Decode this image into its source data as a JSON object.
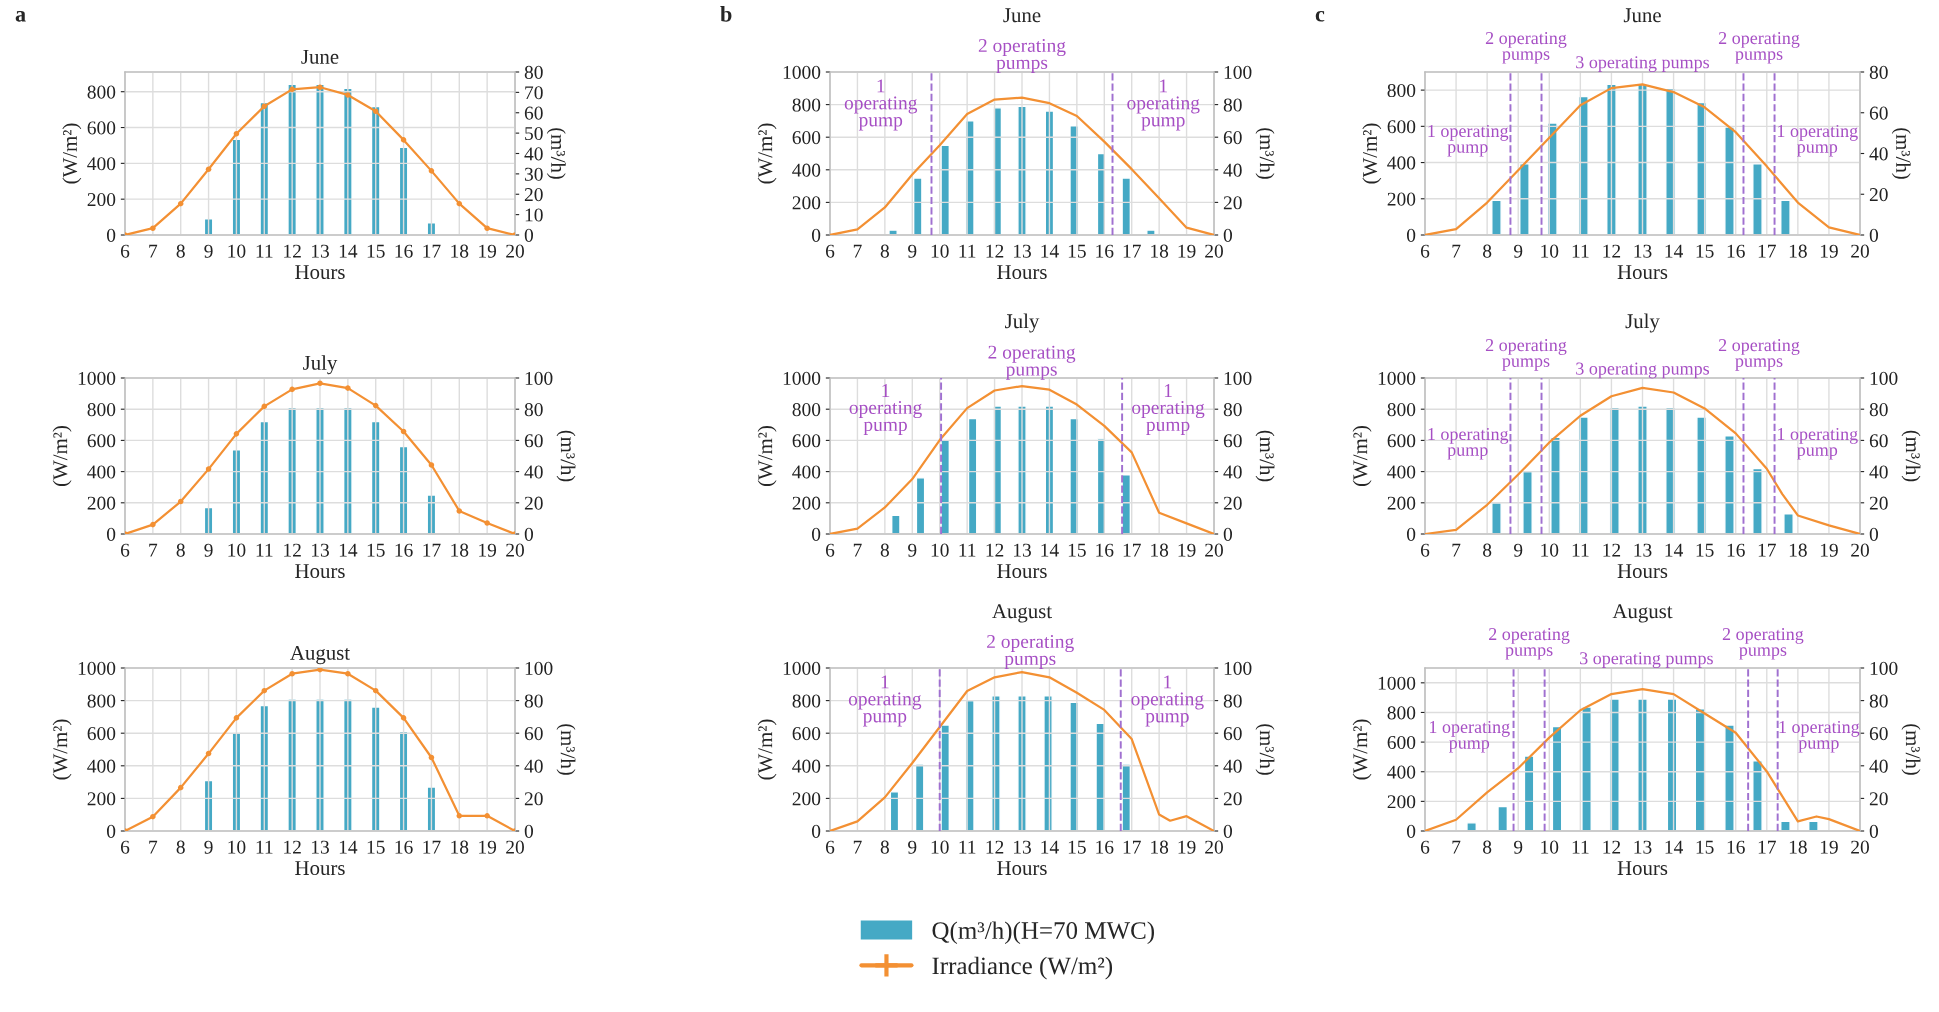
{
  "chart_data": [
    {
      "type": "bar",
      "title": "June",
      "xlabel": "Hours",
      "ylabel": "(W/m²)",
      "y2label": "(m³/h)",
      "xlim": [
        6,
        20
      ],
      "xticks": [
        6,
        7,
        8,
        9,
        10,
        11,
        12,
        13,
        14,
        15,
        16,
        17,
        18,
        19,
        20
      ],
      "ylim": [
        0,
        910
      ],
      "yticks": [
        0,
        200,
        400,
        600,
        800
      ],
      "y2lim": [
        0,
        80
      ],
      "y2ticks": [
        0,
        10,
        20,
        30,
        40,
        50,
        60,
        70,
        80
      ],
      "grid": true,
      "legend": "bottom",
      "annotations": [
        "a"
      ],
      "series": [
        {
          "name": "Q(m³/h)(H=70 MWC)",
          "axis": "y2",
          "color": "#45a9c5",
          "x": [
            9,
            10,
            11,
            12,
            13,
            14,
            15,
            16,
            17
          ],
          "values": [
            8,
            47,
            65,
            74,
            74,
            72,
            63,
            43,
            6
          ]
        },
        {
          "name": "Irradiance (W/m²)",
          "type": "line",
          "axis": "y",
          "color": "#f39033",
          "marker": "circle",
          "x": [
            6,
            7,
            8,
            9,
            10,
            11,
            12,
            13,
            14,
            15,
            16,
            17,
            18,
            19,
            20
          ],
          "values": [
            0,
            38,
            175,
            367,
            565,
            719,
            813,
            825,
            782,
            691,
            531,
            358,
            175,
            38,
            0
          ]
        }
      ]
    },
    {
      "type": "bar",
      "title": "July",
      "xlabel": "Hours",
      "ylabel": "(W/m²)",
      "y2label": "(m³/h)",
      "xlim": [
        6,
        20
      ],
      "xticks": [
        6,
        7,
        8,
        9,
        10,
        11,
        12,
        13,
        14,
        15,
        16,
        17,
        18,
        19,
        20
      ],
      "ylim": [
        0,
        1000
      ],
      "yticks": [
        0,
        200,
        400,
        600,
        800,
        1000
      ],
      "y2lim": [
        0,
        100
      ],
      "y2ticks": [
        0,
        20,
        40,
        60,
        80,
        100
      ],
      "grid": true,
      "series": [
        {
          "name": "Q(m³/h)(H=70 MWC)",
          "axis": "y2",
          "color": "#45a9c5",
          "x": [
            9,
            10,
            11,
            12,
            13,
            14,
            15,
            16,
            17
          ],
          "values": [
            17,
            54,
            72,
            81,
            81,
            81,
            72,
            56,
            25
          ]
        },
        {
          "name": "Irradiance (W/m²)",
          "type": "line",
          "axis": "y",
          "color": "#f39033",
          "marker": "circle",
          "x": [
            6,
            7,
            8,
            9,
            10,
            11,
            12,
            13,
            14,
            15,
            16,
            17,
            18,
            19,
            20
          ],
          "values": [
            0,
            60,
            208,
            416,
            642,
            818,
            927,
            966,
            935,
            823,
            657,
            442,
            148,
            70,
            0
          ]
        }
      ]
    },
    {
      "type": "bar",
      "title": "August",
      "xlabel": "Hours",
      "ylabel": "(W/m²)",
      "y2label": "(m³/h)",
      "xlim": [
        6,
        20
      ],
      "xticks": [
        6,
        7,
        8,
        9,
        10,
        11,
        12,
        13,
        14,
        15,
        16,
        17,
        18,
        19,
        20
      ],
      "ylim": [
        0,
        1000
      ],
      "yticks": [
        0,
        200,
        400,
        600,
        800,
        1000
      ],
      "y2lim": [
        0,
        100
      ],
      "y2ticks": [
        0,
        20,
        40,
        60,
        80,
        100
      ],
      "grid": true,
      "series": [
        {
          "name": "Q(m³/h)(H=70 MWC)",
          "axis": "y2",
          "color": "#45a9c5",
          "x": [
            9,
            10,
            11,
            12,
            13,
            14,
            15,
            16,
            17
          ],
          "values": [
            31,
            60,
            77,
            81,
            81,
            81,
            76,
            61,
            27
          ]
        },
        {
          "name": "Irradiance (W/m²)",
          "type": "line",
          "axis": "y",
          "color": "#f39033",
          "marker": "circle",
          "x": [
            6,
            7,
            8,
            9,
            10,
            11,
            12,
            13,
            14,
            15,
            16,
            17,
            18,
            19,
            20
          ],
          "values": [
            0,
            88,
            266,
            475,
            694,
            861,
            965,
            990,
            965,
            861,
            694,
            451,
            93,
            93,
            0
          ]
        }
      ]
    },
    {
      "type": "bar",
      "title": "June",
      "xlabel": "Hours",
      "ylabel": "(W/m²)",
      "y2label": "(m³/h)",
      "xlim": [
        6,
        20
      ],
      "xticks": [
        6,
        7,
        8,
        9,
        10,
        11,
        12,
        13,
        14,
        15,
        16,
        17,
        18,
        19,
        20
      ],
      "ylim": [
        0,
        1000
      ],
      "yticks": [
        0,
        200,
        400,
        600,
        800,
        1000
      ],
      "y2lim": [
        0,
        100
      ],
      "y2ticks": [
        0,
        20,
        40,
        60,
        80,
        100
      ],
      "grid": true,
      "ref_lines": [
        {
          "axis": "x",
          "value": 9.7,
          "color": "#a070d0",
          "line_style": "dashed"
        },
        {
          "axis": "x",
          "value": 16.3,
          "color": "#a070d0",
          "line_style": "dashed"
        }
      ],
      "annotations": [
        "b",
        "1\noperating\npump",
        "2 operating\npumps",
        "1\noperating\npump"
      ],
      "series": [
        {
          "name": "Q(m³/h)(H=70 MWC)",
          "axis": "y2",
          "color": "#45a9c5",
          "x": [
            8.3,
            9.2,
            10.2,
            11.1,
            12.1,
            13,
            14,
            14.9,
            15.9,
            16.8,
            17.7
          ],
          "values": [
            3,
            35,
            55,
            70,
            78,
            79,
            76,
            67,
            50,
            35,
            3
          ]
        },
        {
          "name": "Irradiance (W/m²)",
          "type": "line",
          "axis": "y",
          "color": "#f39033",
          "x": [
            6,
            7,
            8,
            9,
            10,
            11,
            12,
            13,
            14,
            15,
            16,
            17,
            18,
            19,
            20
          ],
          "values": [
            0,
            34,
            169,
            371,
            551,
            742,
            831,
            843,
            809,
            730,
            573,
            404,
            225,
            45,
            0
          ]
        }
      ]
    },
    {
      "type": "bar",
      "title": "July",
      "xlabel": "Hours",
      "ylabel": "(W/m²)",
      "y2label": "(m³/h)",
      "xlim": [
        6,
        20
      ],
      "xticks": [
        6,
        7,
        8,
        9,
        10,
        11,
        12,
        13,
        14,
        15,
        16,
        17,
        18,
        19,
        20
      ],
      "ylim": [
        0,
        1000
      ],
      "yticks": [
        0,
        200,
        400,
        600,
        800,
        1000
      ],
      "y2lim": [
        0,
        100
      ],
      "y2ticks": [
        0,
        20,
        40,
        60,
        80,
        100
      ],
      "grid": true,
      "ref_lines": [
        {
          "axis": "x",
          "value": 10.05,
          "color": "#a070d0",
          "line_style": "dashed"
        },
        {
          "axis": "x",
          "value": 16.65,
          "color": "#a070d0",
          "line_style": "dashed"
        }
      ],
      "annotations": [
        "1\noperating\npump",
        "2 operating\npumps",
        "1\noperating\npump"
      ],
      "series": [
        {
          "name": "Q(m³/h)(H=70 MWC)",
          "axis": "y2",
          "color": "#45a9c5",
          "x": [
            8.4,
            9.3,
            10.2,
            11.2,
            12.1,
            13,
            14,
            14.9,
            15.9,
            16.8
          ],
          "values": [
            12,
            36,
            60,
            74,
            82,
            82,
            82,
            74,
            61,
            38
          ]
        },
        {
          "name": "Irradiance (W/m²)",
          "type": "line",
          "axis": "y",
          "color": "#f39033",
          "x": [
            6,
            7,
            8,
            9,
            10,
            11,
            12,
            13,
            14,
            15,
            16,
            17,
            18,
            19,
            20
          ],
          "values": [
            0,
            34,
            170,
            352,
            602,
            807,
            920,
            948,
            925,
            830,
            693,
            523,
            136,
            68,
            0
          ]
        }
      ]
    },
    {
      "type": "bar",
      "title": "August",
      "xlabel": "Hours",
      "ylabel": "(W/m²)",
      "y2label": "(m³/h)",
      "xlim": [
        6,
        20
      ],
      "xticks": [
        6,
        7,
        8,
        9,
        10,
        11,
        12,
        13,
        14,
        15,
        16,
        17,
        18,
        19,
        20
      ],
      "ylim": [
        0,
        1000
      ],
      "yticks": [
        0,
        200,
        400,
        600,
        800,
        1000
      ],
      "y2lim": [
        0,
        100
      ],
      "y2ticks": [
        0,
        20,
        40,
        60,
        80,
        100
      ],
      "grid": true,
      "ref_lines": [
        {
          "axis": "x",
          "value": 10.0,
          "color": "#a070d0",
          "line_style": "dashed"
        },
        {
          "axis": "x",
          "value": 16.6,
          "color": "#a070d0",
          "line_style": "dashed"
        }
      ],
      "annotations": [
        "1\noperating\npump",
        "2 operating\npumps",
        "1\noperating\npump"
      ],
      "series": [
        {
          "name": "Q(m³/h)(H=70 MWC)",
          "axis": "y2",
          "color": "#45a9c5",
          "x": [
            8.35,
            9.27,
            10.2,
            11.1,
            12.05,
            13,
            13.95,
            14.9,
            15.85,
            16.8
          ],
          "values": [
            24,
            41,
            65,
            80,
            83,
            83,
            83,
            79,
            66,
            41
          ]
        },
        {
          "name": "Irradiance (W/m²)",
          "type": "line",
          "axis": "y",
          "color": "#f39033",
          "x": [
            6,
            7,
            8,
            9,
            10,
            11,
            12,
            13,
            14,
            15,
            16,
            17,
            18,
            18.4,
            19,
            20
          ],
          "values": [
            0,
            59,
            206,
            417,
            638,
            859,
            943,
            975,
            943,
            848,
            743,
            564,
            101,
            63,
            91,
            0
          ]
        }
      ]
    },
    {
      "type": "bar",
      "title": "June",
      "xlabel": "Hours",
      "ylabel": "(W/m²)",
      "y2label": "(m³/h)",
      "xlim": [
        6,
        20
      ],
      "xticks": [
        6,
        7,
        8,
        9,
        10,
        11,
        12,
        13,
        14,
        15,
        16,
        17,
        18,
        19,
        20
      ],
      "ylim": [
        0,
        900
      ],
      "yticks": [
        0,
        200,
        400,
        600,
        800
      ],
      "y2lim": [
        0,
        80
      ],
      "y2ticks": [
        0,
        20,
        40,
        60,
        80
      ],
      "grid": true,
      "ref_lines": [
        {
          "axis": "x",
          "value": 8.75,
          "color": "#a070d0",
          "line_style": "dashed"
        },
        {
          "axis": "x",
          "value": 9.75,
          "color": "#a070d0",
          "line_style": "dashed"
        },
        {
          "axis": "x",
          "value": 16.25,
          "color": "#a070d0",
          "line_style": "dashed"
        },
        {
          "axis": "x",
          "value": 17.25,
          "color": "#a070d0",
          "line_style": "dashed"
        }
      ],
      "annotations": [
        "c",
        "1 operating\npump",
        "2 operating\npumps",
        "3 operating pumps",
        "2 operating\npumps",
        "1 operating\npump"
      ],
      "series": [
        {
          "name": "Q(m³/h)(H=70 MWC)",
          "axis": "y2",
          "color": "#45a9c5",
          "x": [
            8.3,
            9.2,
            10.1,
            11.1,
            12,
            13,
            13.9,
            14.9,
            15.8,
            16.7,
            17.6
          ],
          "values": [
            17,
            35,
            55,
            68,
            74,
            74,
            72,
            65,
            53,
            35,
            17
          ]
        },
        {
          "name": "Irradiance (W/m²)",
          "type": "line",
          "axis": "y",
          "color": "#f39033",
          "x": [
            6,
            7,
            8,
            9,
            10,
            11,
            12,
            13,
            14,
            15,
            16,
            17,
            18,
            19,
            20
          ],
          "values": [
            0,
            32,
            179,
            358,
            537,
            716,
            811,
            832,
            789,
            705,
            568,
            379,
            179,
            42,
            0
          ]
        }
      ]
    },
    {
      "type": "bar",
      "title": "July",
      "xlabel": "Hours",
      "ylabel": "(W/m²)",
      "y2label": "(m³/h)",
      "xlim": [
        6,
        20
      ],
      "xticks": [
        6,
        7,
        8,
        9,
        10,
        11,
        12,
        13,
        14,
        15,
        16,
        17,
        18,
        19,
        20
      ],
      "ylim": [
        0,
        1000
      ],
      "yticks": [
        0,
        200,
        400,
        600,
        800,
        1000
      ],
      "y2lim": [
        0,
        100
      ],
      "y2ticks": [
        0,
        20,
        40,
        60,
        80,
        100
      ],
      "grid": true,
      "ref_lines": [
        {
          "axis": "x",
          "value": 8.75,
          "color": "#a070d0",
          "line_style": "dashed"
        },
        {
          "axis": "x",
          "value": 9.75,
          "color": "#a070d0",
          "line_style": "dashed"
        },
        {
          "axis": "x",
          "value": 16.25,
          "color": "#a070d0",
          "line_style": "dashed"
        },
        {
          "axis": "x",
          "value": 17.25,
          "color": "#a070d0",
          "line_style": "dashed"
        }
      ],
      "annotations": [
        "1 operating\npump",
        "2 operating\npumps",
        "3 operating pumps",
        "2 operating\npumps",
        "1 operating\npump"
      ],
      "series": [
        {
          "name": "Q(m³/h)(H=70 MWC)",
          "axis": "y2",
          "color": "#45a9c5",
          "x": [
            8.3,
            9.3,
            10.2,
            11.1,
            12.1,
            13,
            13.9,
            14.9,
            15.8,
            16.7,
            17.7
          ],
          "values": [
            20,
            40,
            62,
            75,
            81,
            82,
            81,
            75,
            63,
            42,
            13
          ]
        },
        {
          "name": "Irradiance (W/m²)",
          "type": "line",
          "axis": "y",
          "color": "#f39033",
          "x": [
            6,
            7,
            8,
            9,
            10,
            11,
            12,
            13,
            14,
            15,
            16,
            17,
            17.5,
            18,
            19,
            20
          ],
          "values": [
            0,
            27,
            187,
            381,
            587,
            758,
            883,
            937,
            907,
            805,
            645,
            418,
            256,
            119,
            55,
            0
          ]
        }
      ]
    },
    {
      "type": "bar",
      "title": "August",
      "xlabel": "Hours",
      "ylabel": "(W/m²)",
      "y2label": "(m³/h)",
      "xlim": [
        6,
        20
      ],
      "xticks": [
        6,
        7,
        8,
        9,
        10,
        11,
        12,
        13,
        14,
        15,
        16,
        17,
        18,
        19,
        20
      ],
      "ylim": [
        0,
        1100
      ],
      "yticks": [
        0,
        200,
        400,
        600,
        800,
        1000
      ],
      "y2lim": [
        0,
        100
      ],
      "y2ticks": [
        0,
        20,
        40,
        60,
        80,
        100
      ],
      "grid": true,
      "ref_lines": [
        {
          "axis": "x",
          "value": 8.85,
          "color": "#a070d0",
          "line_style": "dashed"
        },
        {
          "axis": "x",
          "value": 9.85,
          "color": "#a070d0",
          "line_style": "dashed"
        },
        {
          "axis": "x",
          "value": 16.4,
          "color": "#a070d0",
          "line_style": "dashed"
        },
        {
          "axis": "x",
          "value": 17.35,
          "color": "#a070d0",
          "line_style": "dashed"
        }
      ],
      "annotations": [
        "1 operating\npump",
        "2 operating\npumps",
        "3 operating pumps",
        "2 operating\npumps",
        "1 operating\npump"
      ],
      "series": [
        {
          "name": "Q(m³/h)(H=70 MWC)",
          "axis": "y2",
          "color": "#45a9c5",
          "x": [
            7.5,
            8.5,
            9.35,
            10.25,
            11.2,
            12.1,
            13,
            13.95,
            14.85,
            15.8,
            16.7,
            17.6,
            18.5
          ],
          "values": [
            5,
            15,
            46,
            64,
            76,
            81,
            81,
            81,
            75,
            65,
            43,
            6,
            6
          ]
        },
        {
          "name": "Irradiance (W/m²)",
          "type": "line",
          "axis": "y",
          "color": "#f39033",
          "x": [
            6,
            7,
            8,
            9,
            10,
            11,
            12,
            13,
            14,
            15,
            16,
            17,
            18,
            18.6,
            19,
            20
          ],
          "values": [
            0,
            76,
            261,
            424,
            630,
            815,
            924,
            957,
            924,
            793,
            663,
            402,
            65,
            98,
            80,
            0
          ]
        }
      ]
    }
  ]
}
